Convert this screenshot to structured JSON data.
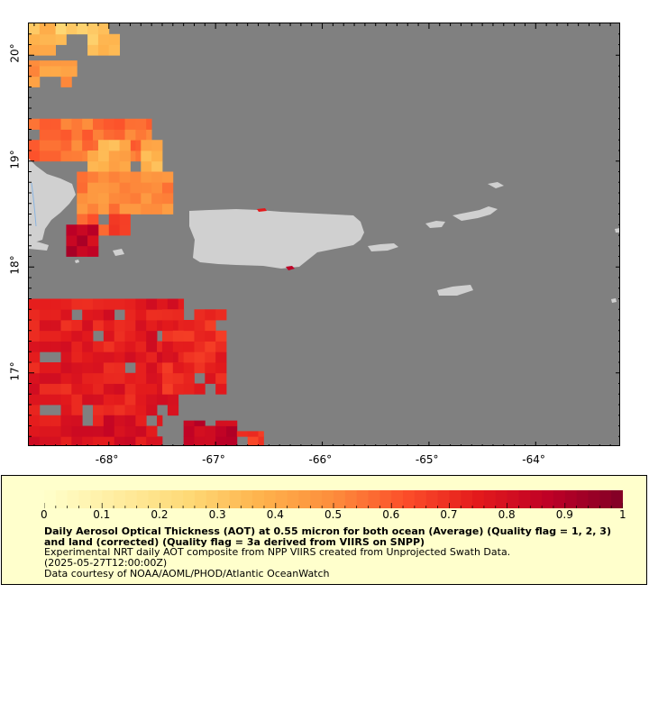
{
  "map": {
    "lat_ticks": [
      {
        "label": "20°",
        "value": 20
      },
      {
        "label": "19°",
        "value": 19
      },
      {
        "label": "18°",
        "value": 18
      },
      {
        "label": "17°",
        "value": 17
      }
    ],
    "lon_ticks": [
      {
        "label": "-68°",
        "value": -68
      },
      {
        "label": "-67°",
        "value": -67
      },
      {
        "label": "-66°",
        "value": -66
      },
      {
        "label": "-65°",
        "value": -65
      },
      {
        "label": "-64°",
        "value": -64
      }
    ],
    "colors": {
      "no_data": "#808080",
      "land": "#d0d0d0",
      "coast_water": "#8ab4e0"
    }
  },
  "colorbar": {
    "tick_labels": [
      "0",
      "0.1",
      "0.2",
      "0.3",
      "0.4",
      "0.5",
      "0.6",
      "0.7",
      "0.8",
      "0.9",
      "1"
    ],
    "range": [
      0,
      1
    ],
    "colormap": [
      "#ffffcc",
      "#ffeda0",
      "#fed976",
      "#feb24c",
      "#fd8d3c",
      "#fc4e2a",
      "#e31a1c",
      "#bd0026",
      "#800026"
    ]
  },
  "legend": {
    "title": "Daily Aerosol Optical Thickness (AOT) at 0.55 micron for both ocean (Average) (Quality flag = 1, 2, 3) and land (corrected) (Quality flag = 3a derived from VIIRS on SNPP)",
    "subtitle": "Experimental NRT daily AOT composite from NPP VIIRS created from Unprojected Swath Data.",
    "time": "(2025-05-27T12:00:00Z)",
    "credit": "Data courtesy of NOAA/AOML/PHOD/Atlantic OceanWatch"
  },
  "chart_data": {
    "type": "heatmap",
    "xlabel": "",
    "ylabel": "",
    "xlim": [
      -68.75,
      -63.2
    ],
    "ylim": [
      16.3,
      20.3
    ],
    "value_range": [
      0,
      1
    ],
    "legend_placement": "bottom",
    "grid": false,
    "cell_size_deg": 0.1,
    "regions": [
      {
        "lon": [
          -68.75,
          -68.5
        ],
        "lat": [
          20.0,
          20.3
        ],
        "aot": 0.35
      },
      {
        "lon": [
          -68.5,
          -68.2
        ],
        "lat": [
          20.1,
          20.3
        ],
        "aot": 0.28
      },
      {
        "lon": [
          -68.2,
          -67.9
        ],
        "lat": [
          20.0,
          20.3
        ],
        "aot": 0.32
      },
      {
        "lon": [
          -68.75,
          -68.3
        ],
        "lat": [
          19.7,
          19.95
        ],
        "aot": 0.45
      },
      {
        "lon": [
          -68.75,
          -67.6
        ],
        "lat": [
          19.0,
          19.4
        ],
        "aot": 0.55
      },
      {
        "lon": [
          -68.2,
          -67.5
        ],
        "lat": [
          18.7,
          19.2
        ],
        "aot": 0.38
      },
      {
        "lon": [
          -68.3,
          -67.4
        ],
        "lat": [
          18.5,
          18.9
        ],
        "aot": 0.5
      },
      {
        "lon": [
          -68.3,
          -67.8
        ],
        "lat": [
          18.3,
          18.5
        ],
        "aot": 0.62
      },
      {
        "lon": [
          -68.4,
          -68.1
        ],
        "lat": [
          18.1,
          18.4
        ],
        "aot": 0.85
      },
      {
        "lon": [
          -68.75,
          -67.3
        ],
        "lat": [
          16.6,
          17.7
        ],
        "aot": 0.75
      },
      {
        "lon": [
          -67.5,
          -66.9
        ],
        "lat": [
          16.8,
          17.6
        ],
        "aot": 0.72
      },
      {
        "lon": [
          -68.75,
          -67.5
        ],
        "lat": [
          16.3,
          16.6
        ],
        "aot": 0.78
      },
      {
        "lon": [
          -67.3,
          -66.8
        ],
        "lat": [
          16.3,
          16.55
        ],
        "aot": 0.85
      },
      {
        "lon": [
          -66.8,
          -66.55
        ],
        "lat": [
          16.3,
          16.45
        ],
        "aot": 0.7
      }
    ]
  }
}
